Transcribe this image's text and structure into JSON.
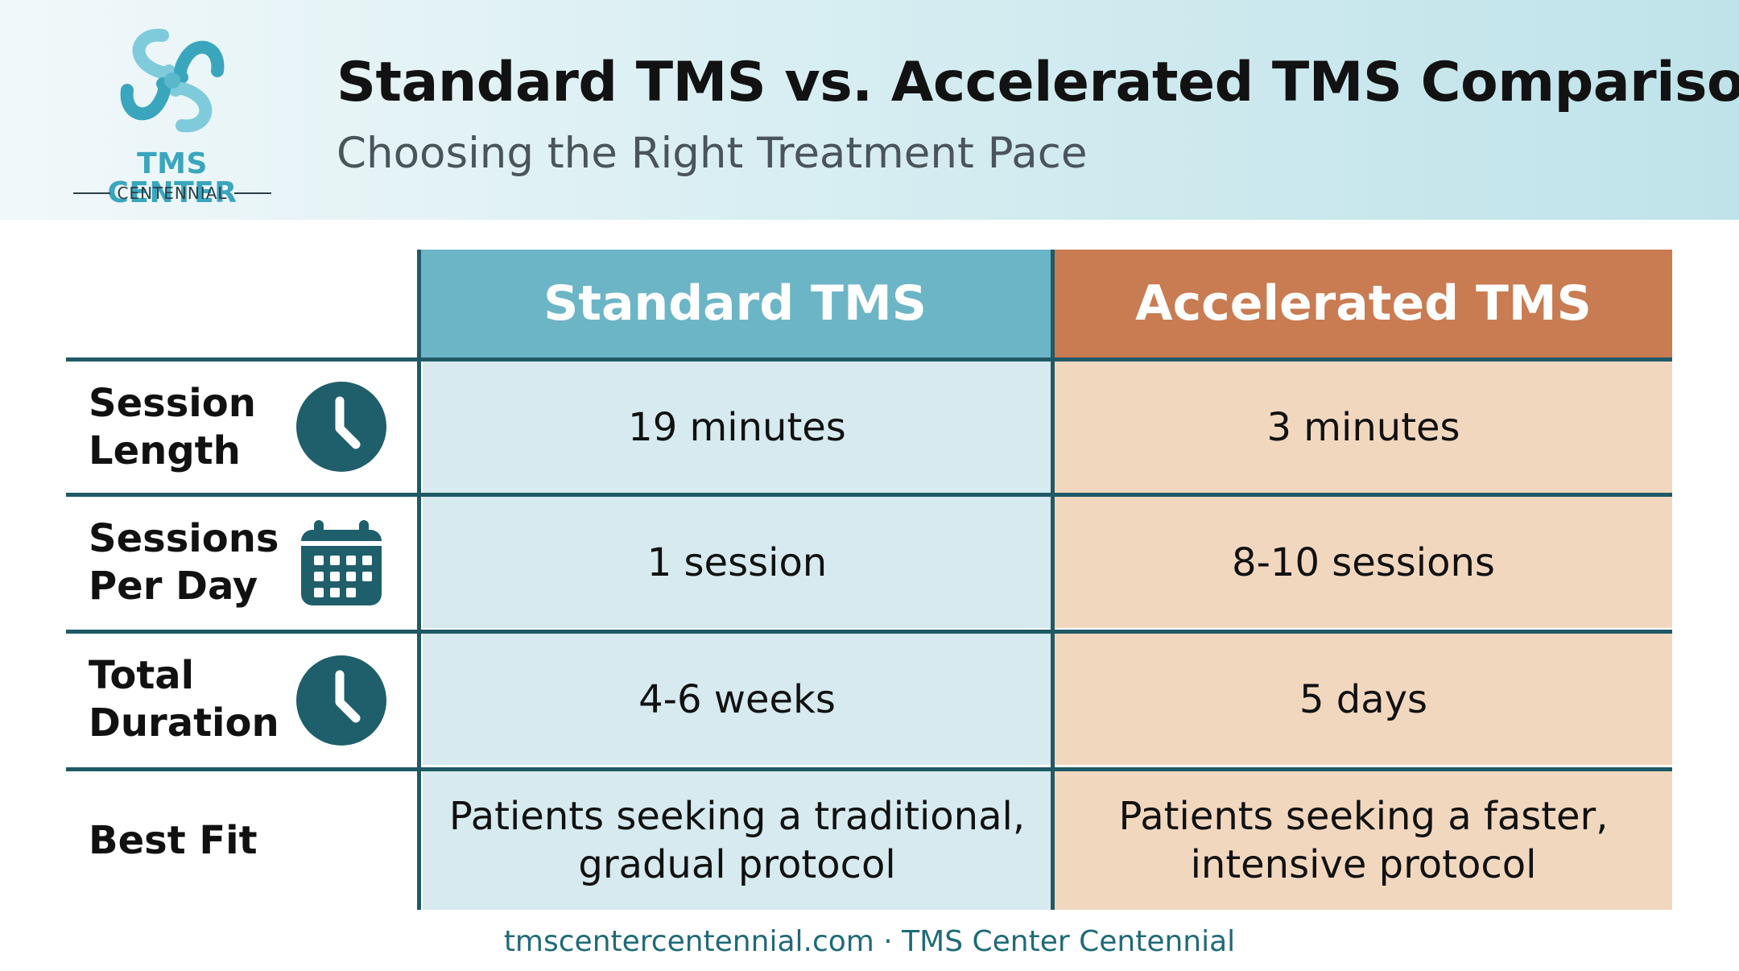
{
  "header": {
    "logo": {
      "name": "TMS CENTER",
      "subtitle": "CENTENNIAL",
      "colors": {
        "primary": "#3aa6bd",
        "light": "#7fcbdb"
      }
    },
    "title": "Standard TMS vs. Accelerated TMS Comparison",
    "subtitle": "Choosing the Right Treatment Pace"
  },
  "table": {
    "columns": [
      {
        "label": "Standard TMS",
        "color": "#6cb5c6"
      },
      {
        "label": "Accelerated TMS",
        "color": "#c97b52"
      }
    ],
    "rows": [
      {
        "label": "Session\nLength",
        "icon": "clock-icon",
        "standard": "19 minutes",
        "accelerated": "3 minutes"
      },
      {
        "label": "Sessions\nPer Day",
        "icon": "calendar-icon",
        "standard": "1 session",
        "accelerated": "8-10 sessions"
      },
      {
        "label": "Total\nDuration",
        "icon": "clock-icon",
        "standard": "4-6 weeks",
        "accelerated": "5 days"
      },
      {
        "label": "Best Fit",
        "icon": "",
        "standard": "Patients seeking a traditional,\ngradual protocol",
        "accelerated": "Patients seeking a faster,\nintensive protocol"
      }
    ]
  },
  "footer": {
    "text": "tmscentercentennial.com · TMS Center Centennial"
  }
}
